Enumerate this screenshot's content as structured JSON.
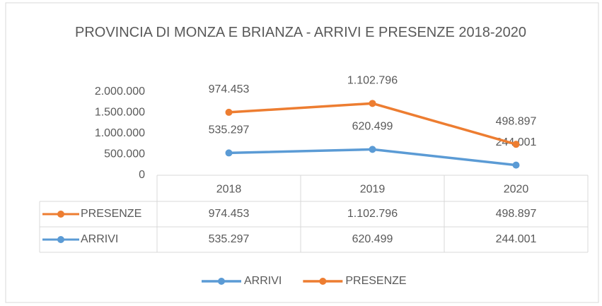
{
  "chart_data": {
    "type": "line",
    "stacked": true,
    "title": "PROVINCIA DI MONZA E BRIANZA - ARRIVI E PRESENZE 2018-2020",
    "categories": [
      "2018",
      "2019",
      "2020"
    ],
    "series": [
      {
        "name": "ARRIVI",
        "color": "#5b9bd5",
        "values": [
          535297,
          620499,
          244001
        ],
        "value_labels": [
          "535.297",
          "620.499",
          "244.001"
        ]
      },
      {
        "name": "PRESENZE",
        "color": "#ed7d31",
        "values": [
          974453,
          1102796,
          498897
        ],
        "value_labels": [
          "974.453",
          "1.102.796",
          "498.897"
        ]
      }
    ],
    "ylim": [
      0,
      2000000
    ],
    "yticks": [
      0,
      {
        "value": 500000,
        "label": "500.000"
      },
      {
        "value": 1000000,
        "label": "1.000.000"
      },
      {
        "value": 1500000,
        "label": "1.500.000"
      },
      {
        "value": 2000000,
        "label": "2.000.000"
      }
    ],
    "grid": false,
    "data_table": true,
    "legend": "bottom"
  }
}
